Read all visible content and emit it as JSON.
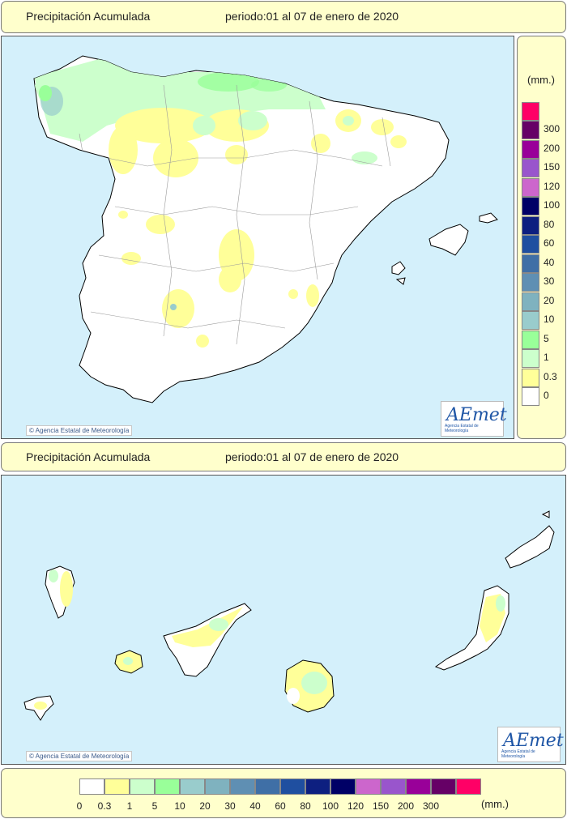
{
  "top": {
    "title": "Precipitación Acumulada",
    "period": "periodo:01 al 07 de enero de 2020",
    "copyright": "© Agencia Estatal de Meteorología",
    "logo": "AEmet",
    "logo_sub": "Agencia Estatal de Meteorología"
  },
  "bottom": {
    "title": "Precipitación Acumulada",
    "period": "periodo:01 al 07 de enero de 2020",
    "copyright": "© Agencia Estatal de Meteorología",
    "logo": "AEmet",
    "logo_sub": "Agencia Estatal de Meteorología"
  },
  "legend": {
    "unit": "(mm.)",
    "classes": [
      {
        "label": "0",
        "color": "#ffffff"
      },
      {
        "label": "0.3",
        "color": "#ffff99"
      },
      {
        "label": "1",
        "color": "#ccffcc"
      },
      {
        "label": "5",
        "color": "#99ff99"
      },
      {
        "label": "10",
        "color": "#99cccc"
      },
      {
        "label": "20",
        "color": "#7fb2bf"
      },
      {
        "label": "30",
        "color": "#5f8fb3"
      },
      {
        "label": "40",
        "color": "#3f6fa6"
      },
      {
        "label": "60",
        "color": "#1f4fa0"
      },
      {
        "label": "80",
        "color": "#0d1f80"
      },
      {
        "label": "100",
        "color": "#000066"
      },
      {
        "label": "120",
        "color": "#cc66cc"
      },
      {
        "label": "150",
        "color": "#9955cc"
      },
      {
        "label": "200",
        "color": "#990099"
      },
      {
        "label": "300",
        "color": "#660066"
      },
      {
        "label": "",
        "color": "#ff0066"
      }
    ]
  },
  "colors": {
    "sea": "#d4f0fb",
    "land": "#ffffff",
    "banner": "#ffffcc"
  }
}
